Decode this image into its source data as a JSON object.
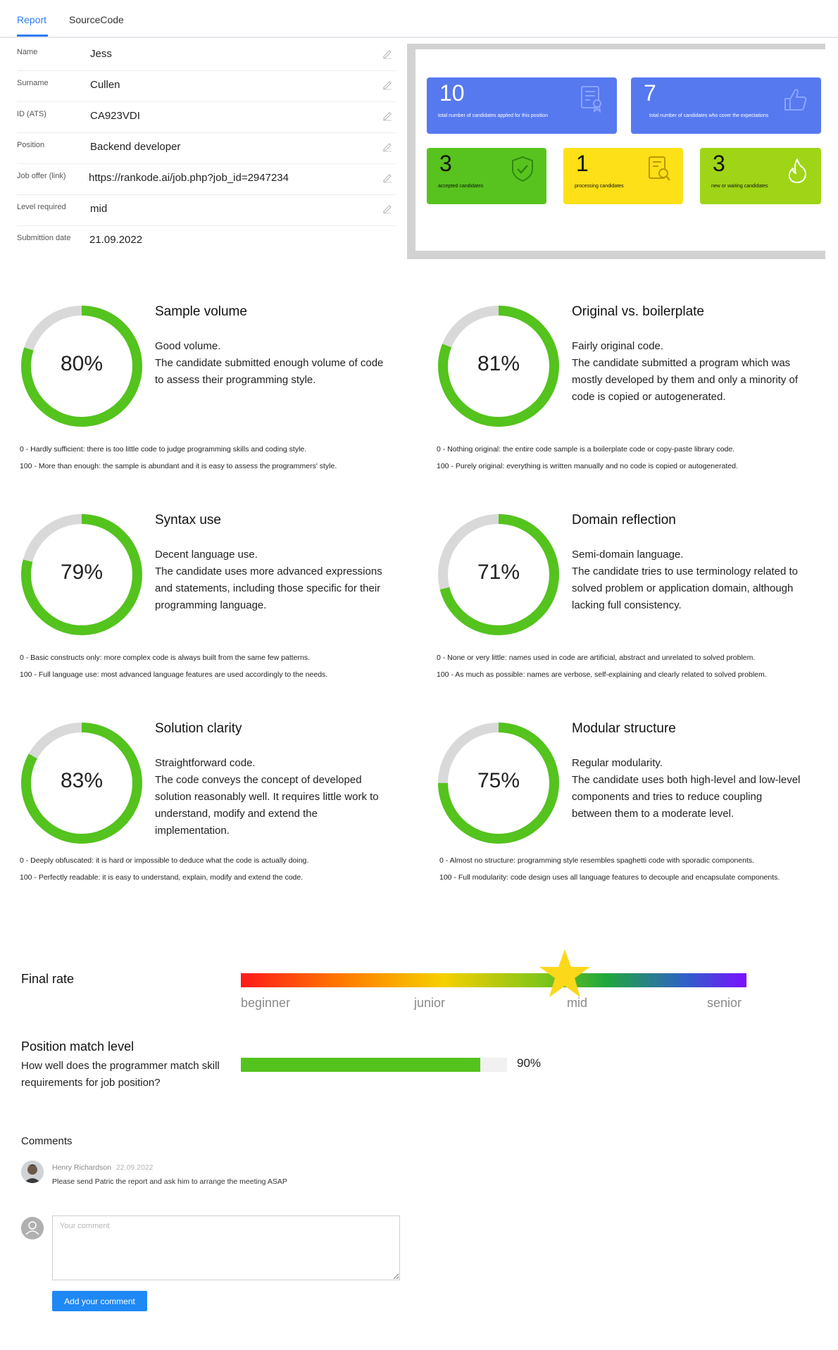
{
  "tabs": [
    {
      "label": "Report"
    },
    {
      "label": "SourceCode"
    }
  ],
  "candidate": [
    {
      "label": "Name",
      "value": "Jess"
    },
    {
      "label": "Surname",
      "value": "Cullen"
    },
    {
      "label": "ID (ATS)",
      "value": "CA923VDI"
    },
    {
      "label": "Position",
      "value": "Backend developer"
    },
    {
      "label": "Job offer (link)",
      "value": "https://rankode.ai/job.php?job_id=2947234"
    },
    {
      "label": "Level required",
      "value": "mid"
    },
    {
      "label": "Submittion date",
      "value": "21.09.2022"
    }
  ],
  "stats": [
    {
      "number": "10",
      "caption": "total number of candidates applied for this position",
      "icon": "certificate-icon",
      "color": "#5679f0"
    },
    {
      "number": "7",
      "caption": "total number of candidates who cover the expectations",
      "icon": "thumbs-up-icon",
      "color": "#5679f0"
    },
    {
      "number": "3",
      "caption": "accepted candidates",
      "icon": "shield-check-icon",
      "color": "#58c31e"
    },
    {
      "number": "1",
      "caption": "processing candidates",
      "icon": "document-search-icon",
      "color": "#fde018"
    },
    {
      "number": "3",
      "caption": "new or waiting candidates",
      "icon": "flame-icon",
      "color": "#9fd516"
    }
  ],
  "metrics": [
    {
      "title": "Sample volume",
      "percent": 80,
      "percent_text": "80%",
      "desc_heading": "Good volume.",
      "desc_body": "The candidate submitted enough volume of code to assess their programming style.",
      "legend_min": "0 - Hardly sufficient: there is too little code to judge programming skills and coding style.",
      "legend_max": "100 - More than enough: the sample is abundant and it is easy to assess the programmers' style."
    },
    {
      "title": "Original vs. boilerplate",
      "percent": 81,
      "percent_text": "81%",
      "desc_heading": "Fairly original code.",
      "desc_body": "The candidate submitted a program which was mostly developed by them and only a minority of code is copied or autogenerated.",
      "legend_min": "0 - Nothing original: the entire code sample is a boilerplate code or copy-paste library code.",
      "legend_max": "100 - Purely original: everything is written manually and no code is copied or autogenerated."
    },
    {
      "title": "Syntax use",
      "percent": 79,
      "percent_text": "79%",
      "desc_heading": "Decent language use.",
      "desc_body": "The candidate uses more advanced expressions and statements, including those specific for their programming language.",
      "legend_min": "0 - Basic constructs only: more complex code is always built from the same few patterns.",
      "legend_max": "100 - Full language use: most advanced language features are used accordingly to the needs."
    },
    {
      "title": "Domain reflection",
      "percent": 71,
      "percent_text": "71%",
      "desc_heading": "Semi-domain language.",
      "desc_body": "The candidate tries to use terminology related to solved problem or application domain, although lacking full consistency.",
      "legend_min": "0 - None or very little: names used in code are artificial, abstract and unrelated to solved problem.",
      "legend_max": "100 - As much as possible: names are verbose, self-explaining and clearly related to solved problem."
    },
    {
      "title": "Solution clarity",
      "percent": 83,
      "percent_text": "83%",
      "desc_heading": "Straightforward code.",
      "desc_body": "The code conveys the concept of developed solution reasonably well. It requires little work to understand, modify and extend the implementation.",
      "legend_min": "0 - Deeply obfuscated: it is hard or impossible to deduce what the code is actually doing.",
      "legend_max": "100 - Perfectly readable: it is easy to understand, explain, modify and extend the code."
    },
    {
      "title": "Modular structure",
      "percent": 75,
      "percent_text": "75%",
      "desc_heading": "Regular modularity.",
      "desc_body": "The candidate uses both high-level and low-level components and tries to reduce coupling between them to a moderate level.",
      "legend_min": "0 - Almost no structure: programming style resembles spaghetti code with sporadic components.",
      "legend_max": "100 - Full modularity: code design uses all language features to decouple and encapsulate components."
    }
  ],
  "final_rate": {
    "label": "Final rate",
    "levels": [
      "beginner",
      "junior",
      "mid",
      "senior"
    ],
    "selected": "mid",
    "position_fraction": 0.64
  },
  "position_match": {
    "title": "Position match level",
    "question": "How well does the programmer match skill requirements for job position?",
    "percent": 90,
    "percent_text": "90%"
  },
  "comments": {
    "title": "Comments",
    "items": [
      {
        "author": "Henry Richardson",
        "date": "22.09.2022",
        "text": "Please send Patric the report  and ask him to arrange the meeting ASAP"
      }
    ],
    "placeholder": "Your comment",
    "submit_label": "Add your comment"
  },
  "colors": {
    "accent": "#2e7cf6",
    "gauge_fill": "#54c31d",
    "gauge_track": "#d9d9d9",
    "button": "#1e88f5"
  }
}
